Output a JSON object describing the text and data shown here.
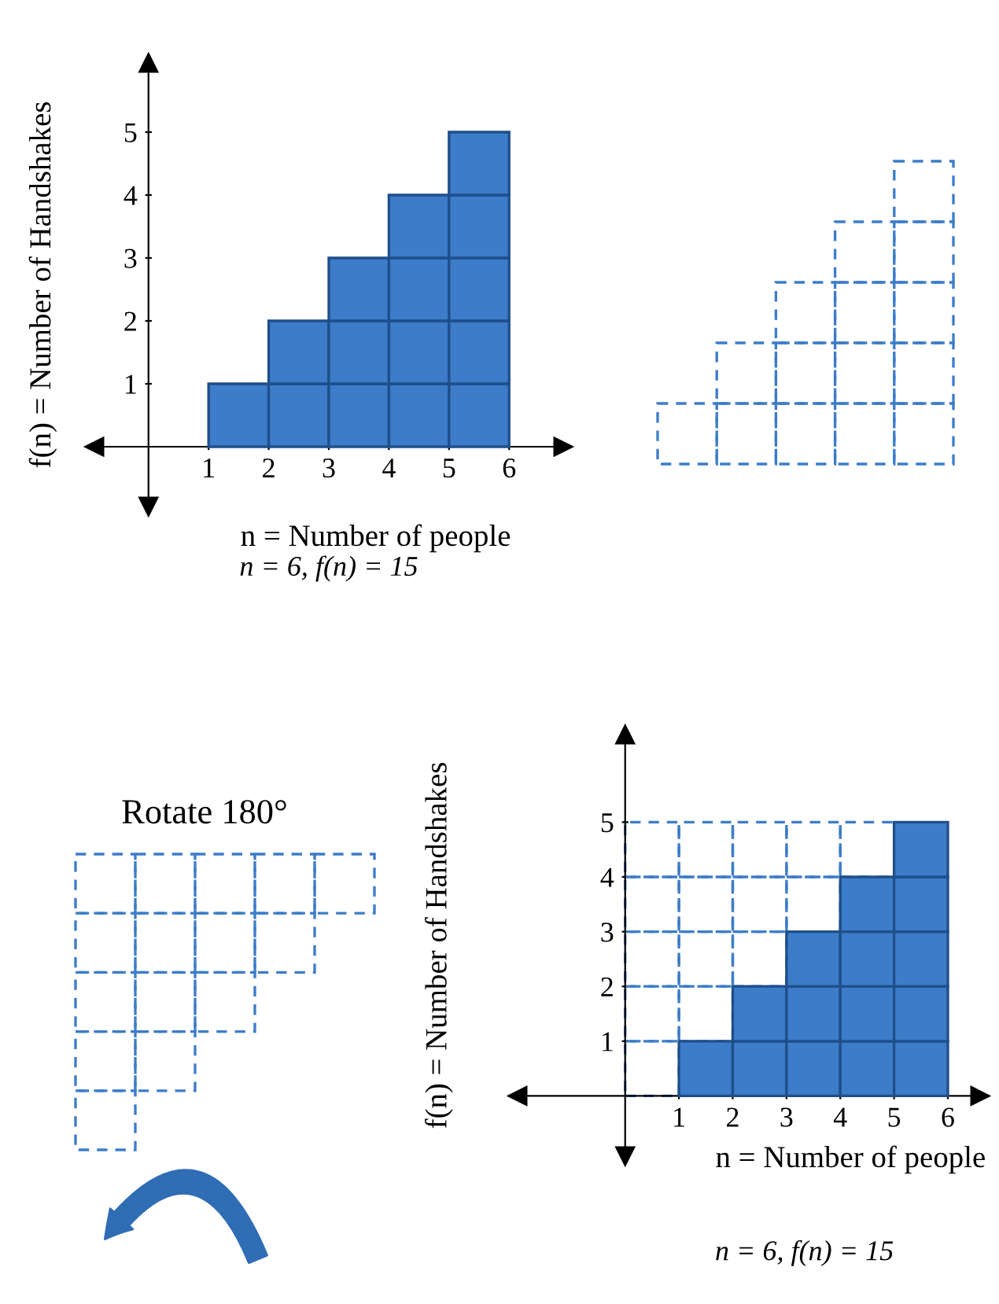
{
  "chart_data": [
    {
      "type": "bar",
      "stacked": true,
      "xlabel": "n = Number of people",
      "ylabel": "f(n) = Number of Handshakes",
      "x": [
        1.5,
        2.5,
        3.5,
        4.5,
        5.5
      ],
      "xlim": [
        -0.9,
        6.9
      ],
      "ylim": [
        -0.95,
        6.1
      ],
      "xticks": [
        1,
        2,
        3,
        4,
        5,
        6
      ],
      "yticks": [
        1,
        2,
        3,
        4,
        5
      ],
      "legend": false,
      "grid": false,
      "series": [
        {
          "color": "#3d7cc9",
          "values": [
            1,
            1,
            1,
            1,
            1
          ]
        },
        {
          "color": "#3d7cc9",
          "values": [
            null,
            1,
            1,
            1,
            1
          ]
        },
        {
          "color": "#3d7cc9",
          "values": [
            null,
            null,
            1,
            1,
            1
          ]
        },
        {
          "color": "#3d7cc9",
          "values": [
            null,
            null,
            null,
            1,
            1
          ]
        },
        {
          "color": "#3d7cc9",
          "values": [
            null,
            null,
            null,
            null,
            1
          ]
        }
      ],
      "annotations": [
        "n = 6, f(n) = 15"
      ]
    },
    {
      "type": "bar",
      "stacked": true,
      "xlabel": "n = Number of people",
      "ylabel": "f(n) = Number of Handshakes",
      "x": [
        0.5,
        1.5,
        2.5,
        3.5,
        4.5,
        5.5
      ],
      "xlim": [
        -2.0,
        6.6
      ],
      "ylim": [
        -1.1,
        6.6
      ],
      "xticks": [
        1,
        2,
        3,
        4,
        5,
        6
      ],
      "yticks": [
        1,
        2,
        3,
        4,
        5
      ],
      "legend": false,
      "grid": false,
      "series": [
        {
          "color": "#3d7cc9",
          "values": [
            null,
            1,
            1,
            1,
            1,
            1
          ]
        },
        {
          "color": "#3d7cc9",
          "values": [
            null,
            null,
            1,
            1,
            1,
            1
          ]
        },
        {
          "color": "#3d7cc9",
          "values": [
            null,
            null,
            null,
            1,
            1,
            1
          ]
        },
        {
          "color": "#3d7cc9",
          "values": [
            null,
            null,
            null,
            null,
            1,
            1
          ]
        },
        {
          "color": "#3d7cc9",
          "values": [
            null,
            null,
            null,
            null,
            null,
            1
          ]
        },
        {
          "color": "#3d7cc9",
          "line_style": "dashed",
          "values": [
            1,
            1,
            1,
            1,
            1,
            null
          ]
        },
        {
          "color": "#3d7cc9",
          "line_style": "dashed",
          "values": [
            1,
            1,
            1,
            1,
            null,
            null
          ]
        },
        {
          "color": "#3d7cc9",
          "line_style": "dashed",
          "values": [
            1,
            1,
            1,
            null,
            null,
            null
          ]
        },
        {
          "color": "#3d7cc9",
          "line_style": "dashed",
          "values": [
            1,
            1,
            null,
            null,
            null,
            null
          ]
        },
        {
          "color": "#3d7cc9",
          "line_style": "dashed",
          "values": [
            1,
            null,
            null,
            null,
            null,
            null
          ]
        }
      ],
      "annotations": [
        "Rotate 180°",
        "n = 6, f(n) = 15"
      ]
    }
  ]
}
